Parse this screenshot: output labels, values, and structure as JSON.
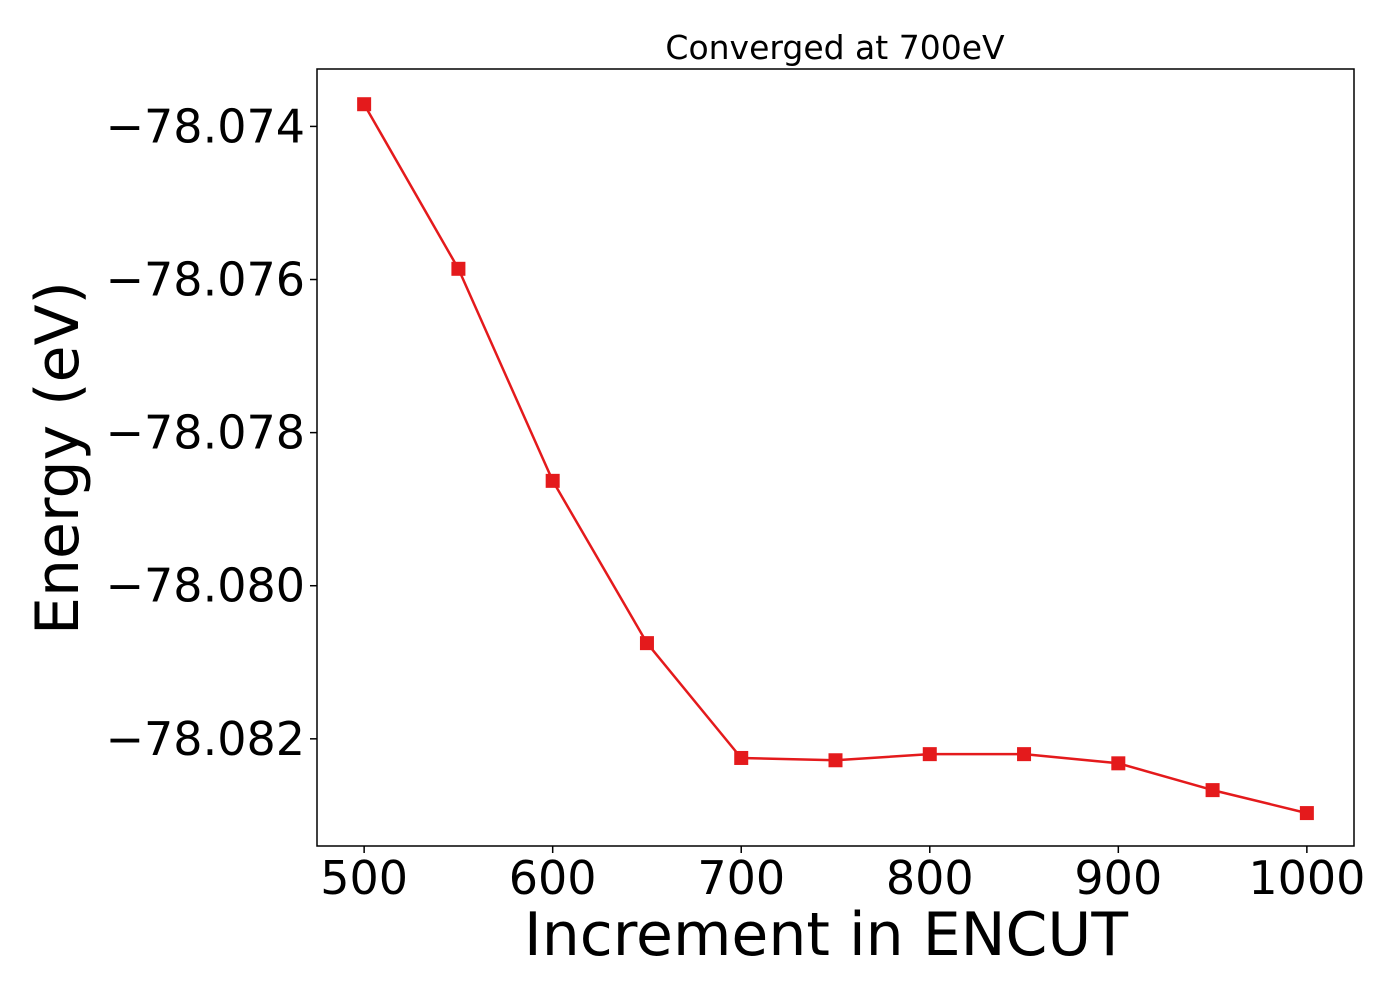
{
  "chart_data": {
    "type": "line",
    "title": "Converged at 700eV",
    "xlabel": "Increment in ENCUT",
    "ylabel": "Energy (eV)",
    "x": [
      500,
      550,
      600,
      650,
      700,
      750,
      800,
      850,
      900,
      950,
      1000
    ],
    "series": [
      {
        "values": [
          -78.07371,
          -78.07586,
          -78.07863,
          -78.08075,
          -78.08225,
          -78.08228,
          -78.0822,
          -78.0822,
          -78.08232,
          -78.08267,
          -78.08297
        ],
        "color": "#e41a1c",
        "marker": "square"
      }
    ],
    "xlim": [
      475,
      1025
    ],
    "ylim": [
      -78.0834,
      -78.07325
    ],
    "xticks": [
      500,
      600,
      700,
      800,
      900,
      1000
    ],
    "xtick_labels": [
      "500",
      "600",
      "700",
      "800",
      "900",
      "1000"
    ],
    "yticks": [
      -78.074,
      -78.076,
      -78.078,
      -78.08,
      -78.082
    ],
    "ytick_labels": [
      "−78.074",
      "−78.076",
      "−78.078",
      "−78.080",
      "−78.082"
    ],
    "grid": false,
    "legend": false
  }
}
